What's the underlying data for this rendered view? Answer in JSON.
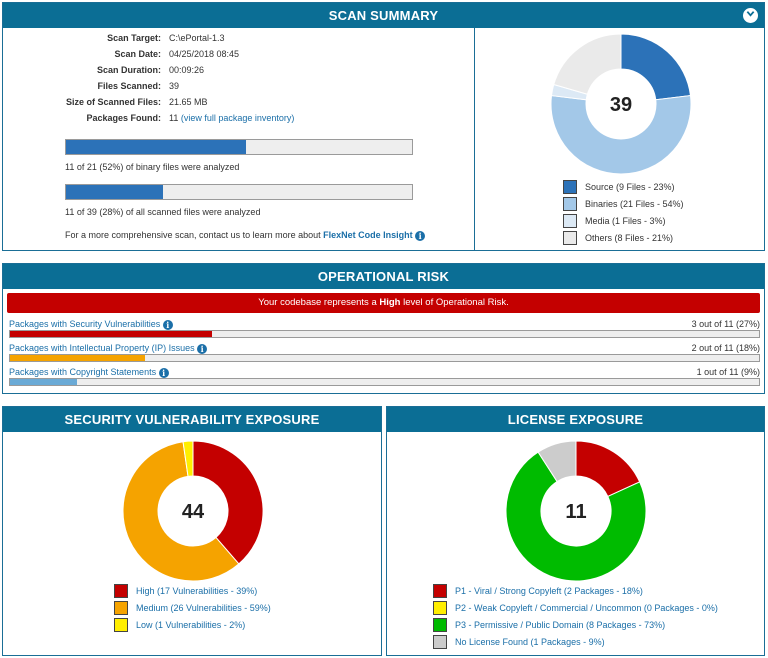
{
  "scan_summary": {
    "title": "SCAN SUMMARY",
    "collapse_icon": "chevron-down-icon",
    "fields": [
      {
        "label": "Scan Target:",
        "value": "C:\\ePortal-1.3"
      },
      {
        "label": "Scan Date:",
        "value": "04/25/2018 08:45"
      },
      {
        "label": "Scan Duration:",
        "value": "00:09:26"
      },
      {
        "label": "Files Scanned:",
        "value": "39"
      },
      {
        "label": "Size of Scanned Files:",
        "value": "21.65 MB"
      }
    ],
    "packages_found_label": "Packages Found:",
    "packages_found_value": "11",
    "packages_link": "(view full package inventory)",
    "bar1_fraction": 0.52,
    "bar1_caption": "11 of 21 (52%) of binary files were analyzed",
    "bar2_fraction": 0.28,
    "bar2_caption": "11 of 39 (28%) of all scanned files were analyzed",
    "contact_text": "For a more comprehensive scan, contact us to learn more about",
    "contact_link": "FlexNet Code Insight",
    "donut_total": "39",
    "legend": [
      {
        "label": "Source (9 Files - 23%)",
        "value": 9,
        "color": "#2c72b8"
      },
      {
        "label": "Binaries (21 Files - 54%)",
        "value": 21,
        "color": "#a3c8e8"
      },
      {
        "label": "Media (1 Files - 3%)",
        "value": 1,
        "color": "#dce9f5"
      },
      {
        "label": "Others (8 Files - 21%)",
        "value": 8,
        "color": "#eaeaea"
      }
    ]
  },
  "operational_risk": {
    "title": "OPERATIONAL RISK",
    "banner_pre": "Your codebase represents a",
    "banner_level": "High",
    "banner_post": "level of Operational Risk.",
    "banner_color": "#c40000",
    "rows": [
      {
        "label": "Packages with Security Vulnerabilities",
        "count": "3 out of 11 (27%)",
        "fraction": 0.27,
        "color": "#c40000"
      },
      {
        "label": "Packages with Intellectual Property (IP) Issues",
        "count": "2 out of 11 (18%)",
        "fraction": 0.18,
        "color": "#f5a300"
      },
      {
        "label": "Packages with Copyright Statements",
        "count": "1 out of 11 (9%)",
        "fraction": 0.09,
        "color": "#6aaad6"
      }
    ]
  },
  "security_exposure": {
    "title": "SECURITY VULNERABILITY EXPOSURE",
    "donut_total": "44",
    "legend": [
      {
        "label": "High (17 Vulnerabilities - 39%)",
        "value": 17,
        "color": "#c40000"
      },
      {
        "label": "Medium (26 Vulnerabilities - 59%)",
        "value": 26,
        "color": "#f5a300"
      },
      {
        "label": "Low (1 Vulnerabilities - 2%)",
        "value": 1,
        "color": "#ffee00"
      }
    ]
  },
  "license_exposure": {
    "title": "LICENSE EXPOSURE",
    "donut_total": "11",
    "legend": [
      {
        "label": "P1 - Viral / Strong Copyleft (2 Packages - 18%)",
        "value": 2,
        "color": "#c40000"
      },
      {
        "label": "P2 - Weak Copyleft / Commercial / Uncommon (0 Packages - 0%)",
        "value": 0,
        "color": "#ffee00"
      },
      {
        "label": "P3 - Permissive / Public Domain (8 Packages - 73%)",
        "value": 8,
        "color": "#00bb00"
      },
      {
        "label": "No License Found (1 Packages - 9%)",
        "value": 1,
        "color": "#cccccc"
      }
    ]
  }
}
